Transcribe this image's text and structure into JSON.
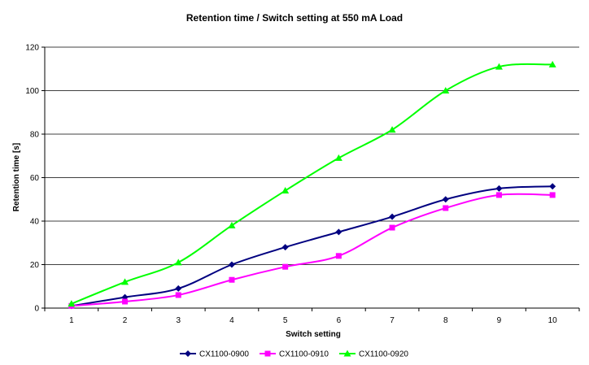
{
  "chart_data": {
    "type": "line",
    "title": "Retention time / Switch setting at 550 mA Load",
    "xlabel": "Switch setting",
    "ylabel": "Retention time [s]",
    "x": [
      1,
      2,
      3,
      4,
      5,
      6,
      7,
      8,
      9,
      10
    ],
    "ylim": [
      0,
      120
    ],
    "yticks": [
      0,
      20,
      40,
      60,
      80,
      100,
      120
    ],
    "grid": true,
    "legend_position": "bottom",
    "series": [
      {
        "name": "CX1100-0900",
        "color": "#000080",
        "marker": "diamond",
        "values": [
          1,
          5,
          9,
          20,
          28,
          35,
          42,
          50,
          55,
          56
        ]
      },
      {
        "name": "CX1100-0910",
        "color": "#ff00ff",
        "marker": "square",
        "values": [
          1,
          3,
          6,
          13,
          19,
          24,
          37,
          46,
          52,
          52
        ]
      },
      {
        "name": "CX1100-0920",
        "color": "#00ff00",
        "marker": "triangle",
        "values": [
          2,
          12,
          21,
          38,
          54,
          69,
          82,
          100,
          111,
          112
        ]
      }
    ]
  }
}
